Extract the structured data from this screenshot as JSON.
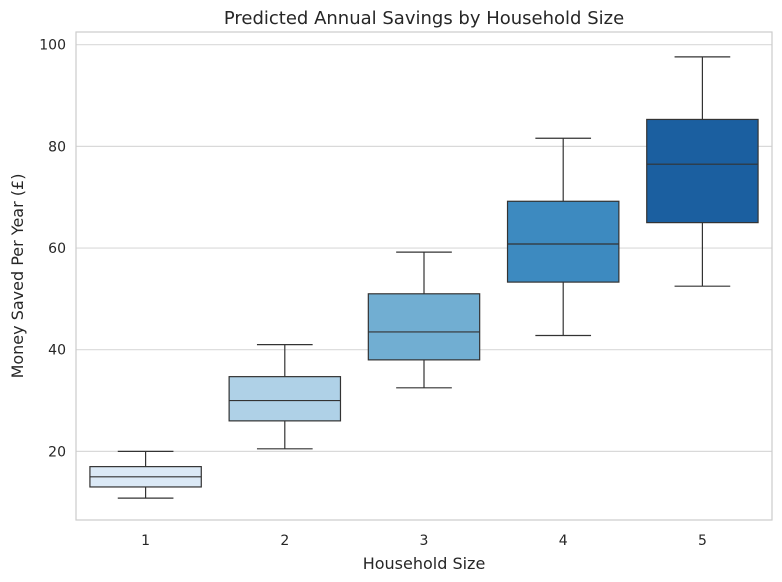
{
  "chart_data": {
    "type": "box",
    "title": "Predicted Annual Savings by Household Size",
    "xlabel": "Household Size",
    "ylabel": "Money Saved Per Year (£)",
    "categories": [
      "1",
      "2",
      "3",
      "4",
      "5"
    ],
    "boxes": [
      {
        "category": "1",
        "min": 10.8,
        "q1": 13.0,
        "median": 15.0,
        "q3": 17.0,
        "max": 20.0,
        "color": "#dbe9f6"
      },
      {
        "category": "2",
        "min": 20.5,
        "q1": 26.0,
        "median": 30.0,
        "q3": 34.7,
        "max": 41.0,
        "color": "#afd1e7"
      },
      {
        "category": "3",
        "min": 32.5,
        "q1": 38.0,
        "median": 43.5,
        "q3": 51.0,
        "max": 59.2,
        "color": "#71aed2"
      },
      {
        "category": "4",
        "min": 42.8,
        "q1": 53.3,
        "median": 60.8,
        "q3": 69.2,
        "max": 81.6,
        "color": "#3d8ac0"
      },
      {
        "category": "5",
        "min": 52.5,
        "q1": 65.0,
        "median": 76.5,
        "q3": 85.3,
        "max": 97.6,
        "color": "#1b5fa0"
      }
    ],
    "yticks": [
      20,
      40,
      60,
      80,
      100
    ],
    "ylim": [
      6.5,
      102.5
    ],
    "grid": true,
    "grid_axis": "y",
    "legend": "none",
    "colors": {
      "grid": "#d9d9d9",
      "spine": "#cccccc",
      "outline": "#333333"
    }
  }
}
